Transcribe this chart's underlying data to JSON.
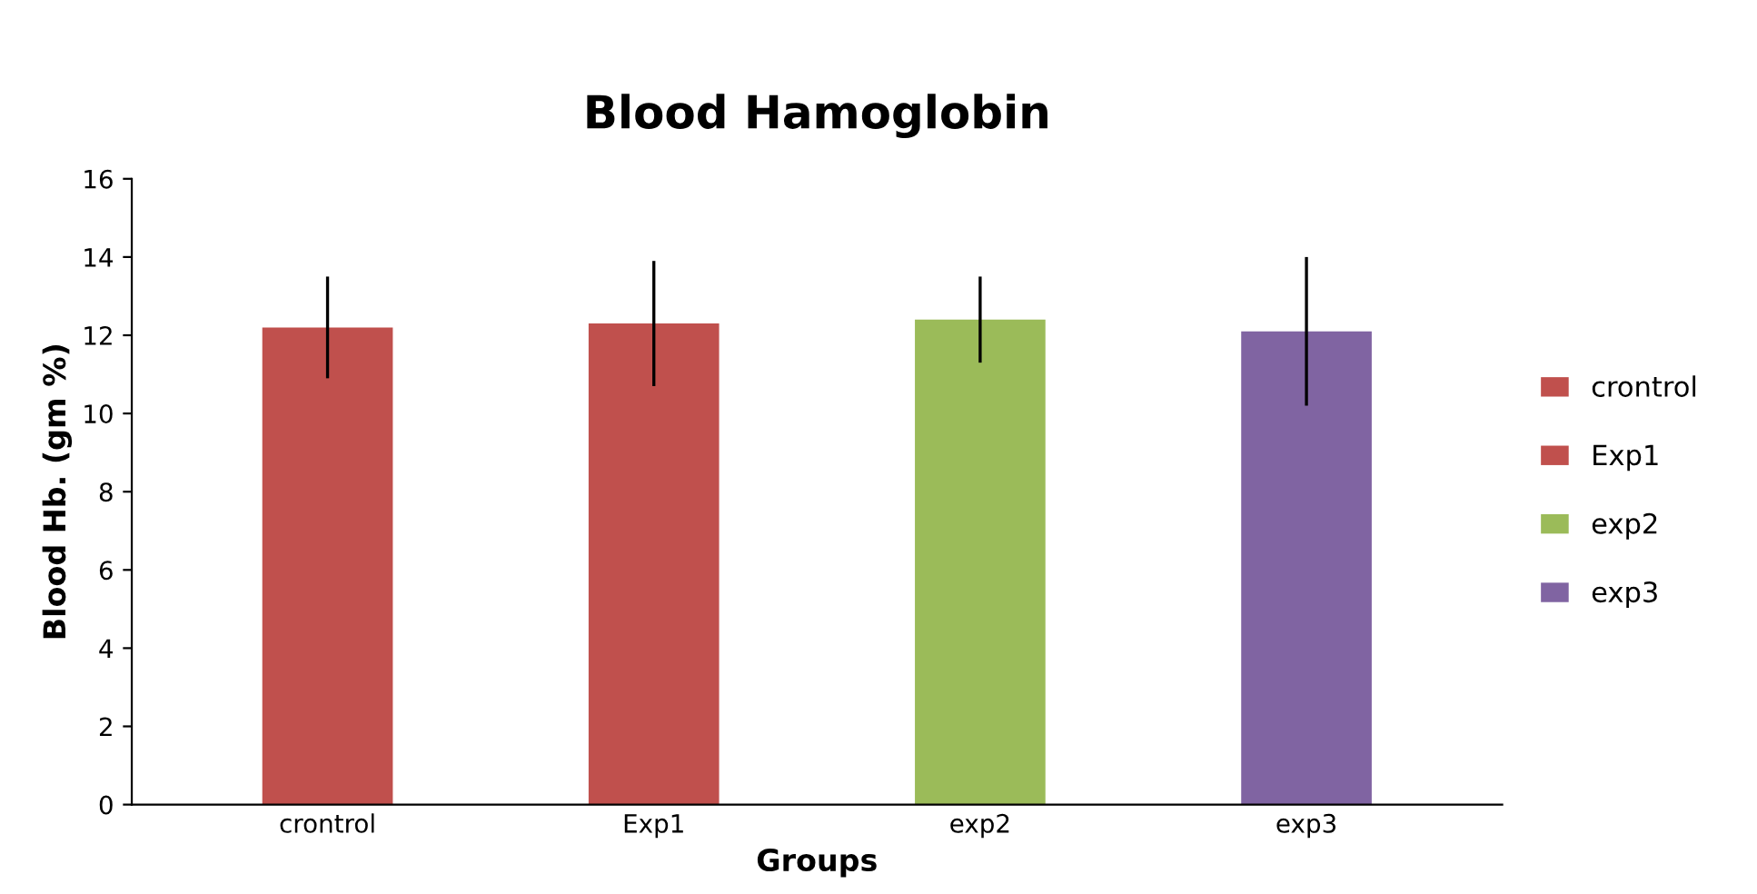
{
  "chart_data": {
    "type": "bar",
    "title": "Blood Hamoglobin",
    "xlabel": "Groups",
    "ylabel": "Blood Hb. (gm %)",
    "categories": [
      "crontrol",
      "Exp1",
      "exp2",
      "exp3"
    ],
    "series": [
      {
        "name": "crontrol",
        "color": "#c0504d",
        "values": [
          12.2,
          null,
          null,
          null
        ],
        "errors": [
          1.3,
          null,
          null,
          null
        ]
      },
      {
        "name": "Exp1",
        "color": "#c0504d",
        "values": [
          null,
          12.3,
          null,
          null
        ],
        "errors": [
          null,
          1.6,
          null,
          null
        ]
      },
      {
        "name": "exp2",
        "color": "#9bbb59",
        "values": [
          null,
          null,
          12.4,
          null
        ],
        "errors": [
          null,
          null,
          1.1,
          null
        ]
      },
      {
        "name": "exp3",
        "color": "#8064a2",
        "values": [
          null,
          null,
          null,
          12.1
        ],
        "errors": [
          null,
          null,
          null,
          1.9
        ]
      }
    ],
    "ylim": [
      0,
      16
    ],
    "yticks": [
      0,
      2,
      4,
      6,
      8,
      10,
      12,
      14,
      16
    ],
    "grid": false,
    "legend": "right"
  }
}
